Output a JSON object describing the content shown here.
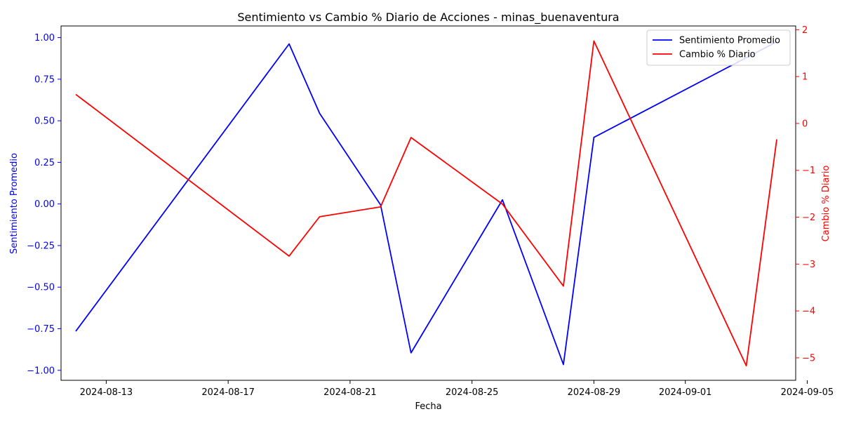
{
  "chart_data": {
    "type": "line",
    "title": "Sentimiento vs Cambio % Diario de Acciones - minas_buenaventura",
    "xlabel": "Fecha",
    "ylabel_left": "Sentimiento Promedio",
    "ylabel_right": "Cambio % Diario",
    "x_ticks": [
      "2024-08-13",
      "2024-08-17",
      "2024-08-21",
      "2024-08-25",
      "2024-08-29",
      "2024-09-01",
      "2024-09-05"
    ],
    "y_left_ticks": [
      "1.00",
      "0.75",
      "0.50",
      "0.25",
      "0.00",
      "−0.25",
      "−0.50",
      "−0.75",
      "−1.00"
    ],
    "y_right_ticks": [
      "2",
      "1",
      "0",
      "−1",
      "−2",
      "−3",
      "−4",
      "−5"
    ],
    "legend_position": "top-right",
    "grid": false,
    "series": [
      {
        "name": "Sentimiento Promedio",
        "axis": "left",
        "color": "#0000ff",
        "points": [
          {
            "x": "2024-08-12",
            "y": -0.765
          },
          {
            "x": "2024-08-19",
            "y": 0.962
          },
          {
            "x": "2024-08-20",
            "y": 0.545
          },
          {
            "x": "2024-08-22",
            "y": -0.005
          },
          {
            "x": "2024-08-23",
            "y": -0.895
          },
          {
            "x": "2024-08-26",
            "y": 0.025
          },
          {
            "x": "2024-08-28",
            "y": -0.965
          },
          {
            "x": "2024-08-29",
            "y": 0.4
          },
          {
            "x": "2024-09-04",
            "y": 0.975
          }
        ]
      },
      {
        "name": "Cambio % Diario",
        "axis": "right",
        "color": "#ff0000",
        "points": [
          {
            "x": "2024-08-12",
            "y": 0.62
          },
          {
            "x": "2024-08-19",
            "y": -2.83
          },
          {
            "x": "2024-08-20",
            "y": -1.99
          },
          {
            "x": "2024-08-22",
            "y": -1.78
          },
          {
            "x": "2024-08-23",
            "y": -0.3
          },
          {
            "x": "2024-08-26",
            "y": -1.72
          },
          {
            "x": "2024-08-28",
            "y": -3.47
          },
          {
            "x": "2024-08-29",
            "y": 1.76
          },
          {
            "x": "2024-09-03",
            "y": -5.17
          },
          {
            "x": "2024-09-04",
            "y": -0.34
          }
        ]
      }
    ]
  }
}
